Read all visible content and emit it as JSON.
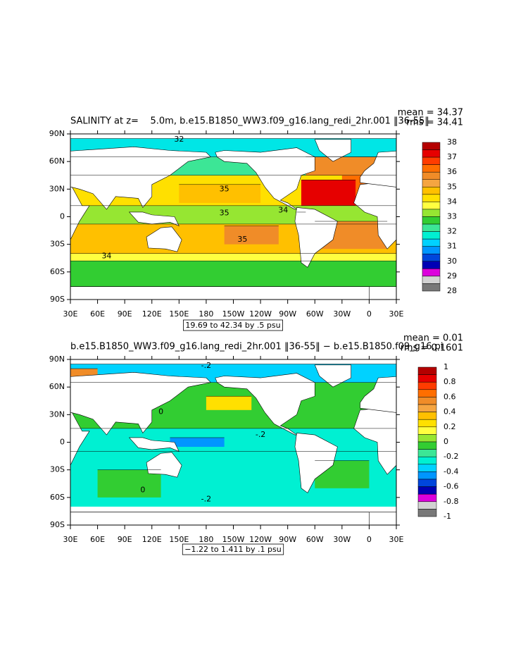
{
  "panels": [
    {
      "title": "SALINITY at z=    5.0m, b.e15.B1850_WW3.f09_g16.lang_redi_2hr.001 ‖36-55‖",
      "mean": "mean = 34.37",
      "rms": "rms = 34.41",
      "range_note": "19.69 to 42.34 by .5 psu",
      "contour_labels": [
        "32",
        "35",
        "35",
        "34",
        "35",
        "34"
      ],
      "colorbar": {
        "labels": [
          38,
          37,
          36,
          35,
          34,
          33,
          32,
          31,
          30,
          29,
          28
        ],
        "colors": [
          "#b40000",
          "#e60000",
          "#ff3c00",
          "#ff6e00",
          "#f08c28",
          "#f5a541",
          "#ffc000",
          "#ffe000",
          "#ffff40",
          "#96e632",
          "#32cd32",
          "#3ce696",
          "#00f0d2",
          "#00d2ff",
          "#0096ff",
          "#0046dc",
          "#0000b4",
          "#dc00dc",
          "#d2d2d2",
          "#787878"
        ]
      }
    },
    {
      "title": "b.e15.B1850_WW3.f09_g16.lang_redi_2hr.001 ‖36-55‖ − b.e15.B1850.f09_g16.pi",
      "mean": "mean = 0.01",
      "rms": "rms = 0.1601",
      "range_note": "−1.22 to 1.411 by .1 psu",
      "contour_labels": [
        "-.2",
        "0",
        "0",
        "-.2",
        "-.2"
      ],
      "colorbar": {
        "labels": [
          1,
          0.8,
          0.6,
          0.4,
          0.2,
          0,
          -0.2,
          -0.4,
          -0.6,
          -0.8,
          -1
        ],
        "colors": [
          "#b40000",
          "#e60000",
          "#ff3c00",
          "#ff6e00",
          "#f08c28",
          "#f5a541",
          "#ffc000",
          "#ffe000",
          "#ffff40",
          "#96e632",
          "#32cd32",
          "#3ce696",
          "#00f0d2",
          "#00d2ff",
          "#0096ff",
          "#0046dc",
          "#0000b4",
          "#dc00dc",
          "#d2d2d2",
          "#787878"
        ]
      }
    }
  ],
  "lat_labels": [
    "90N",
    "60N",
    "30N",
    "0",
    "30S",
    "60S",
    "90S"
  ],
  "lon_labels": [
    "30E",
    "60E",
    "90E",
    "120E",
    "150E",
    "180",
    "150W",
    "120W",
    "90W",
    "60W",
    "30W",
    "0",
    "30E"
  ]
}
